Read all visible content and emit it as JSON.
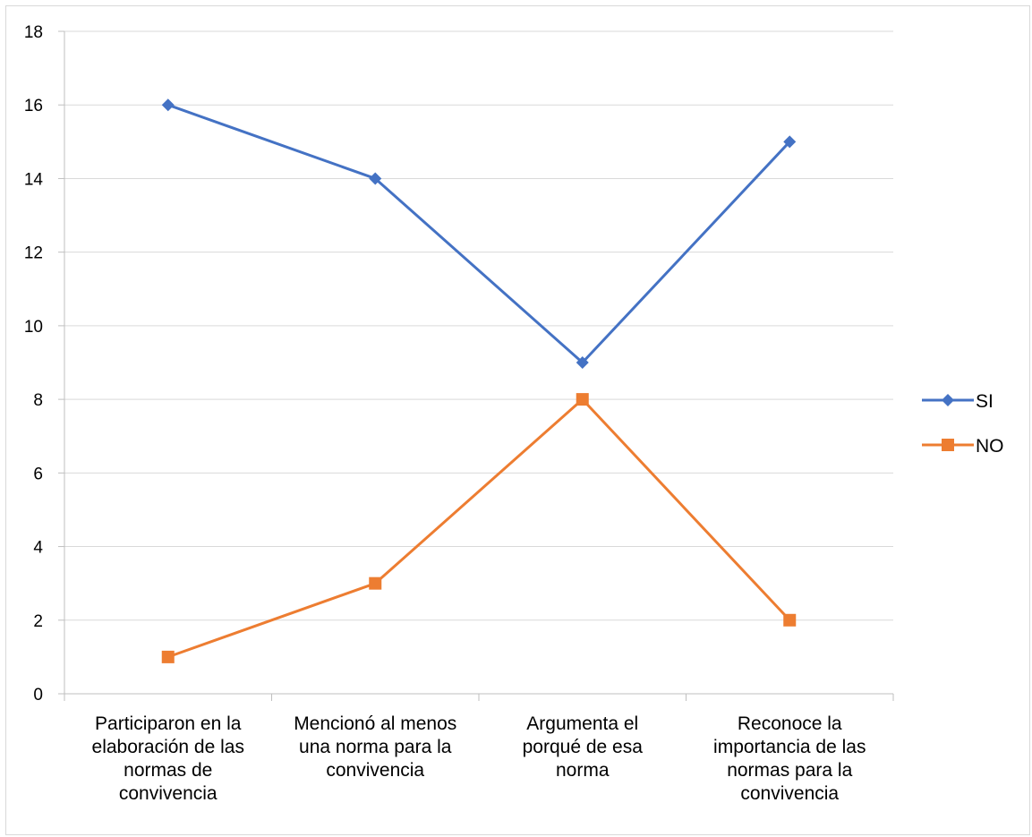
{
  "chart_data": {
    "type": "line",
    "title": "",
    "xlabel": "",
    "ylabel": "",
    "ylim": [
      0,
      18
    ],
    "y_ticks": [
      "0",
      "2",
      "4",
      "6",
      "8",
      "10",
      "12",
      "14",
      "16",
      "18"
    ],
    "categories": [
      [
        "Participaron en la",
        "elaboración de las",
        "normas de",
        "convivencia"
      ],
      [
        "Mencionó al menos",
        "una norma para la",
        "convivencia"
      ],
      [
        "Argumenta el",
        "porqué de esa",
        "norma"
      ],
      [
        "Reconoce la",
        "importancia de las",
        "normas para la",
        "convivencia"
      ]
    ],
    "series": [
      {
        "name": "SI",
        "values": [
          16,
          14,
          9,
          15
        ],
        "color": "#4472C4",
        "marker": "diamond"
      },
      {
        "name": "NO",
        "values": [
          1,
          3,
          8,
          2
        ],
        "color": "#ED7D31",
        "marker": "square"
      }
    ],
    "grid": true,
    "legend_position": "right"
  }
}
